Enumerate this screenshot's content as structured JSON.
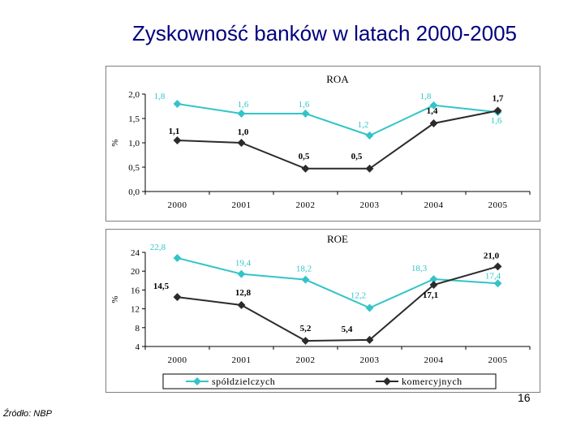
{
  "title": "Zyskowność banków w latach 2000-2005",
  "page_number": "16",
  "source": "Źródło: NBP",
  "colors": {
    "cooperative": "#33c4c8",
    "commercial": "#2b2b2b",
    "title": "#000080"
  },
  "chart_data": [
    {
      "type": "line",
      "title": "ROA",
      "ylabel": "%",
      "xlabel": "",
      "categories": [
        "2000",
        "2001",
        "2002",
        "2003",
        "2004",
        "2005"
      ],
      "ylim": [
        0,
        2
      ],
      "yticks": [
        0,
        0.5,
        1,
        1.5,
        2
      ],
      "ytick_labels": [
        "0,0",
        "0,5",
        "1,0",
        "1,5",
        "2,0"
      ],
      "grid": false,
      "series": [
        {
          "name": "spółdzielczych",
          "values": [
            1.8,
            1.6,
            1.6,
            1.15,
            1.77,
            1.63
          ],
          "labels": [
            "1,8",
            "1,6",
            "1,6",
            "1,2",
            "1,8",
            "1,6"
          ]
        },
        {
          "name": "komercyjnych",
          "values": [
            1.05,
            1.0,
            0.47,
            0.47,
            1.4,
            1.66
          ],
          "labels": [
            "1,1",
            "1,0",
            "0,5",
            "0,5",
            "1,4",
            "1,7"
          ]
        }
      ]
    },
    {
      "type": "line",
      "title": "ROE",
      "ylabel": "%",
      "xlabel": "",
      "categories": [
        "2000",
        "2001",
        "2002",
        "2003",
        "2004",
        "2005"
      ],
      "ylim": [
        4,
        24
      ],
      "yticks": [
        4,
        8,
        12,
        16,
        20,
        24
      ],
      "ytick_labels": [
        "4",
        "8",
        "12",
        "16",
        "20",
        "24"
      ],
      "grid": false,
      "legend_position": "bottom",
      "series": [
        {
          "name": "spółdzielczych",
          "values": [
            22.8,
            19.4,
            18.2,
            12.2,
            18.3,
            17.4
          ],
          "labels": [
            "22,8",
            "19,4",
            "18,2",
            "12,2",
            "18,3",
            "17,4"
          ]
        },
        {
          "name": "komercyjnych",
          "values": [
            14.5,
            12.8,
            5.2,
            5.4,
            17.1,
            21.0
          ],
          "labels": [
            "14,5",
            "12,8",
            "5,2",
            "5,4",
            "17,1",
            "21,0"
          ]
        }
      ]
    }
  ]
}
